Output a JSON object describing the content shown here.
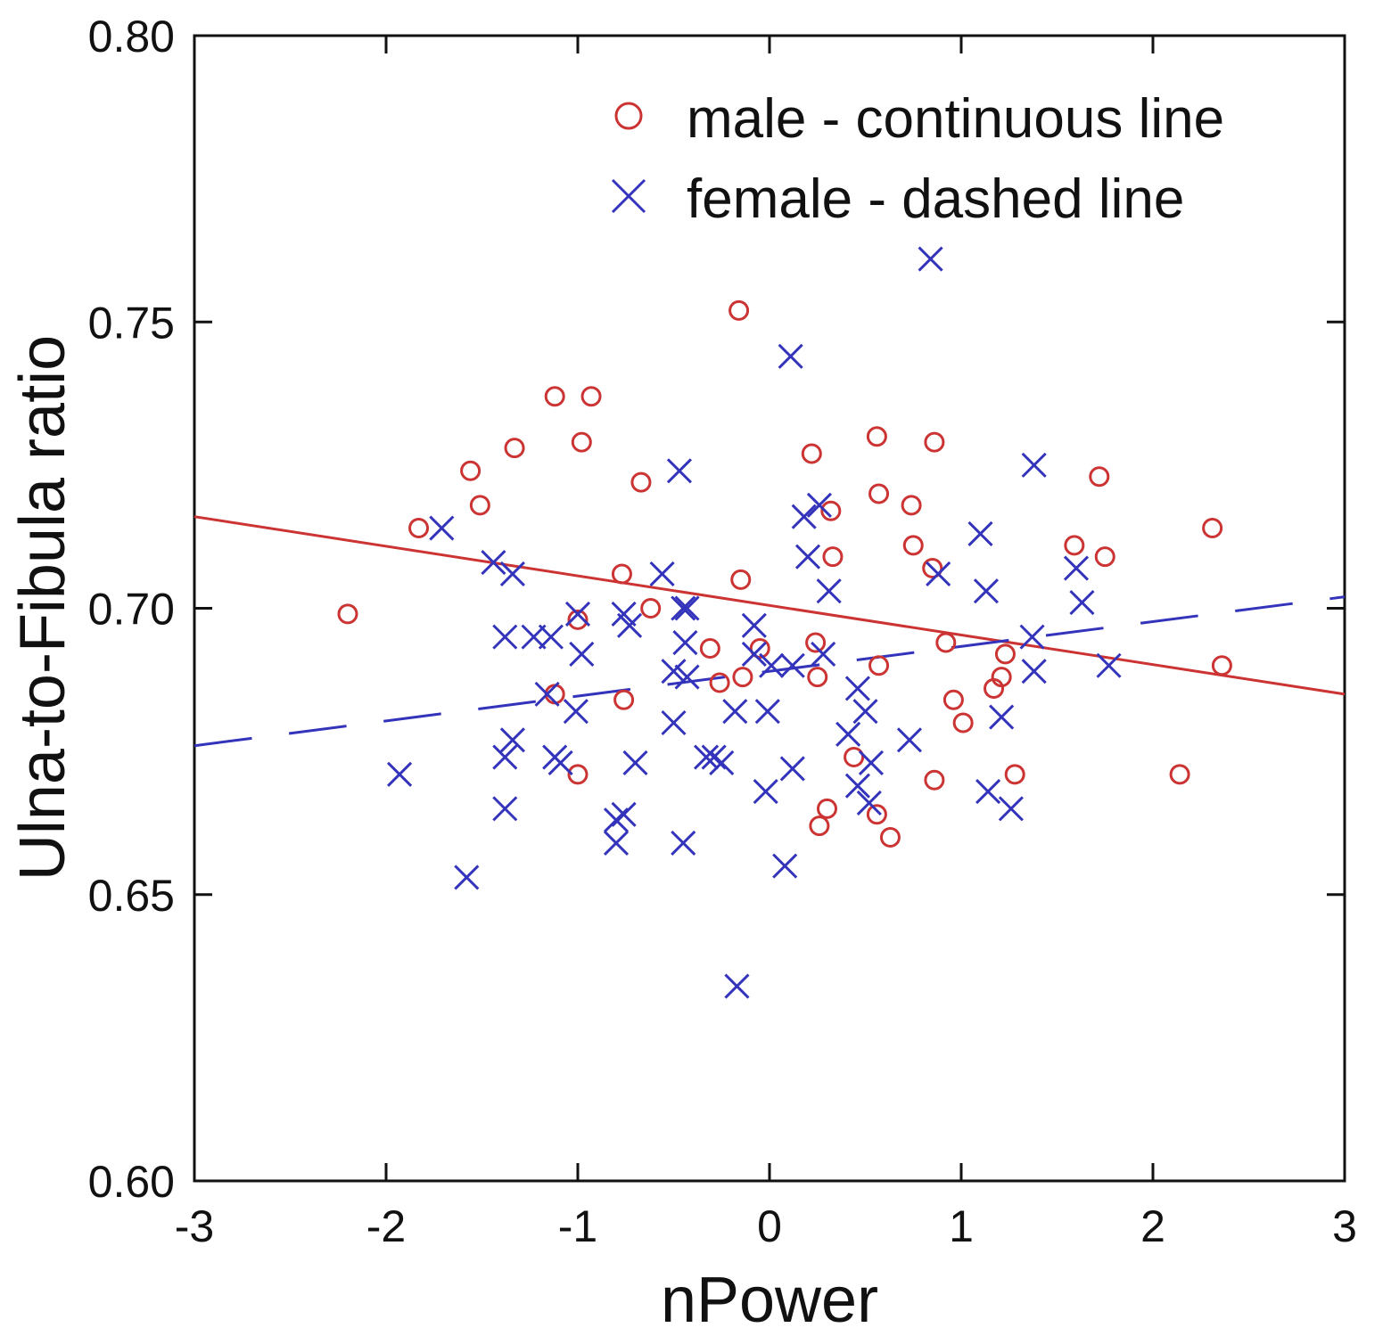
{
  "chart_data": {
    "type": "scatter",
    "title": "",
    "xlabel": "nPower",
    "ylabel": "Ulna-to-Fibula ratio",
    "xlim": [
      -3,
      3
    ],
    "ylim": [
      0.6,
      0.8
    ],
    "x_ticks": [
      -3,
      -2,
      -1,
      0,
      1,
      2,
      3
    ],
    "x_tick_labels": [
      "-3",
      "-2",
      "-1",
      "0",
      "1",
      "2",
      "3"
    ],
    "y_ticks": [
      0.6,
      0.65,
      0.7,
      0.75,
      0.8
    ],
    "y_tick_labels": [
      "0.60",
      "0.65",
      "0.70",
      "0.75",
      "0.80"
    ],
    "grid": false,
    "legend_position": "top-right",
    "colors": {
      "male": "#cc3333",
      "female": "#3333bb",
      "axis": "#111111"
    },
    "series": [
      {
        "name": "male - continuous line",
        "marker": "circle",
        "color": "#cc3333",
        "fit_line": {
          "style": "solid",
          "x": [
            -3,
            3
          ],
          "y": [
            0.716,
            0.685
          ]
        },
        "points": [
          [
            -2.2,
            0.699
          ],
          [
            -1.83,
            0.714
          ],
          [
            -1.56,
            0.724
          ],
          [
            -1.51,
            0.718
          ],
          [
            -1.33,
            0.728
          ],
          [
            -1.12,
            0.737
          ],
          [
            -0.93,
            0.737
          ],
          [
            -0.98,
            0.729
          ],
          [
            -1.12,
            0.685
          ],
          [
            -1.0,
            0.698
          ],
          [
            -1.0,
            0.671
          ],
          [
            -0.77,
            0.706
          ],
          [
            -0.76,
            0.684
          ],
          [
            -0.67,
            0.722
          ],
          [
            -0.62,
            0.7
          ],
          [
            -0.31,
            0.693
          ],
          [
            -0.26,
            0.687
          ],
          [
            -0.16,
            0.752
          ],
          [
            -0.15,
            0.705
          ],
          [
            -0.14,
            0.688
          ],
          [
            -0.05,
            0.693
          ],
          [
            0.22,
            0.727
          ],
          [
            0.24,
            0.694
          ],
          [
            0.25,
            0.688
          ],
          [
            0.26,
            0.662
          ],
          [
            0.3,
            0.665
          ],
          [
            0.32,
            0.717
          ],
          [
            0.33,
            0.709
          ],
          [
            0.44,
            0.674
          ],
          [
            0.56,
            0.73
          ],
          [
            0.57,
            0.72
          ],
          [
            0.57,
            0.69
          ],
          [
            0.56,
            0.664
          ],
          [
            0.63,
            0.66
          ],
          [
            0.74,
            0.718
          ],
          [
            0.75,
            0.711
          ],
          [
            0.86,
            0.729
          ],
          [
            0.85,
            0.707
          ],
          [
            0.86,
            0.67
          ],
          [
            0.92,
            0.694
          ],
          [
            0.96,
            0.684
          ],
          [
            1.01,
            0.68
          ],
          [
            1.17,
            0.686
          ],
          [
            1.21,
            0.688
          ],
          [
            1.23,
            0.692
          ],
          [
            1.28,
            0.671
          ],
          [
            1.59,
            0.711
          ],
          [
            1.72,
            0.723
          ],
          [
            1.75,
            0.709
          ],
          [
            2.14,
            0.671
          ],
          [
            2.31,
            0.714
          ],
          [
            2.36,
            0.69
          ]
        ]
      },
      {
        "name": "female - dashed line",
        "marker": "x",
        "color": "#3333bb",
        "fit_line": {
          "style": "dashed",
          "x": [
            -3,
            3
          ],
          "y": [
            0.676,
            0.702
          ]
        },
        "points": [
          [
            -1.93,
            0.671
          ],
          [
            -1.71,
            0.714
          ],
          [
            -1.58,
            0.653
          ],
          [
            -1.44,
            0.708
          ],
          [
            -1.38,
            0.695
          ],
          [
            -1.38,
            0.674
          ],
          [
            -1.38,
            0.665
          ],
          [
            -1.34,
            0.706
          ],
          [
            -1.34,
            0.677
          ],
          [
            -1.23,
            0.695
          ],
          [
            -1.16,
            0.685
          ],
          [
            -1.14,
            0.695
          ],
          [
            -1.12,
            0.674
          ],
          [
            -1.09,
            0.673
          ],
          [
            -1.01,
            0.682
          ],
          [
            -1.0,
            0.699
          ],
          [
            -0.98,
            0.692
          ],
          [
            -0.8,
            0.663
          ],
          [
            -0.8,
            0.659
          ],
          [
            -0.76,
            0.699
          ],
          [
            -0.76,
            0.664
          ],
          [
            -0.73,
            0.697
          ],
          [
            -0.7,
            0.673
          ],
          [
            -0.56,
            0.706
          ],
          [
            -0.5,
            0.689
          ],
          [
            -0.5,
            0.68
          ],
          [
            -0.47,
            0.724
          ],
          [
            -0.45,
            0.7
          ],
          [
            -0.44,
            0.694
          ],
          [
            -0.43,
            0.7
          ],
          [
            -0.43,
            0.688
          ],
          [
            -0.45,
            0.659
          ],
          [
            -0.33,
            0.674
          ],
          [
            -0.29,
            0.674
          ],
          [
            -0.25,
            0.673
          ],
          [
            -0.18,
            0.682
          ],
          [
            -0.17,
            0.634
          ],
          [
            -0.08,
            0.692
          ],
          [
            -0.08,
            0.697
          ],
          [
            -0.02,
            0.668
          ],
          [
            -0.01,
            0.682
          ],
          [
            0.01,
            0.69
          ],
          [
            0.08,
            0.655
          ],
          [
            0.11,
            0.744
          ],
          [
            0.12,
            0.69
          ],
          [
            0.12,
            0.672
          ],
          [
            0.18,
            0.716
          ],
          [
            0.2,
            0.709
          ],
          [
            0.26,
            0.718
          ],
          [
            0.28,
            0.692
          ],
          [
            0.31,
            0.703
          ],
          [
            0.41,
            0.678
          ],
          [
            0.46,
            0.686
          ],
          [
            0.46,
            0.669
          ],
          [
            0.5,
            0.682
          ],
          [
            0.52,
            0.666
          ],
          [
            0.53,
            0.673
          ],
          [
            0.73,
            0.677
          ],
          [
            0.84,
            0.761
          ],
          [
            0.88,
            0.706
          ],
          [
            1.1,
            0.713
          ],
          [
            1.13,
            0.703
          ],
          [
            1.14,
            0.668
          ],
          [
            1.21,
            0.681
          ],
          [
            1.26,
            0.665
          ],
          [
            1.38,
            0.725
          ],
          [
            1.37,
            0.695
          ],
          [
            1.38,
            0.689
          ],
          [
            1.6,
            0.707
          ],
          [
            1.63,
            0.701
          ],
          [
            1.77,
            0.69
          ]
        ]
      }
    ]
  }
}
